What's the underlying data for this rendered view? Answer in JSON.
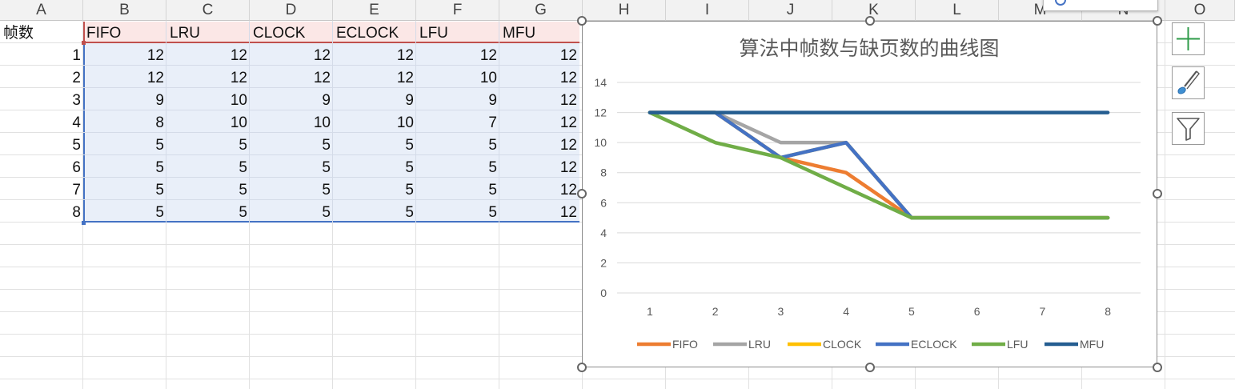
{
  "columns": [
    "A",
    "B",
    "C",
    "D",
    "E",
    "F",
    "G",
    "H",
    "I",
    "J",
    "K",
    "L",
    "M",
    "N",
    "O"
  ],
  "table": {
    "corner_label": "帧数",
    "headers": [
      "FIFO",
      "LRU",
      "CLOCK",
      "ECLOCK",
      "LFU",
      "MFU"
    ],
    "rows": [
      {
        "frames": "1",
        "values": [
          "12",
          "12",
          "12",
          "12",
          "12",
          "12"
        ]
      },
      {
        "frames": "2",
        "values": [
          "12",
          "12",
          "12",
          "12",
          "10",
          "12"
        ]
      },
      {
        "frames": "3",
        "values": [
          "9",
          "10",
          "9",
          "9",
          "9",
          "12"
        ]
      },
      {
        "frames": "4",
        "values": [
          "8",
          "10",
          "10",
          "10",
          "7",
          "12"
        ]
      },
      {
        "frames": "5",
        "values": [
          "5",
          "5",
          "5",
          "5",
          "5",
          "12"
        ]
      },
      {
        "frames": "6",
        "values": [
          "5",
          "5",
          "5",
          "5",
          "5",
          "12"
        ]
      },
      {
        "frames": "7",
        "values": [
          "5",
          "5",
          "5",
          "5",
          "5",
          "12"
        ]
      },
      {
        "frames": "8",
        "values": [
          "5",
          "5",
          "5",
          "5",
          "5",
          "12"
        ]
      }
    ]
  },
  "chart_data": {
    "type": "line",
    "title": "算法中帧数与缺页数的曲线图",
    "x": [
      1,
      2,
      3,
      4,
      5,
      6,
      7,
      8
    ],
    "xticks": [
      "1",
      "2",
      "3",
      "4",
      "5",
      "6",
      "7",
      "8"
    ],
    "yticks": [
      "0",
      "2",
      "4",
      "6",
      "8",
      "10",
      "12",
      "14"
    ],
    "ylim": [
      0,
      14
    ],
    "grid": true,
    "legend_position": "bottom",
    "series": [
      {
        "name": "FIFO",
        "color": "#ed7d31",
        "values": [
          12,
          12,
          9,
          8,
          5,
          5,
          5,
          5
        ]
      },
      {
        "name": "LRU",
        "color": "#a5a5a5",
        "values": [
          12,
          12,
          10,
          10,
          5,
          5,
          5,
          5
        ]
      },
      {
        "name": "CLOCK",
        "color": "#ffc000",
        "values": [
          12,
          12,
          9,
          10,
          5,
          5,
          5,
          5
        ]
      },
      {
        "name": "ECLOCK",
        "color": "#4472c4",
        "values": [
          12,
          12,
          9,
          10,
          5,
          5,
          5,
          5
        ]
      },
      {
        "name": "LFU",
        "color": "#70ad47",
        "values": [
          12,
          10,
          9,
          7,
          5,
          5,
          5,
          5
        ]
      },
      {
        "name": "MFU",
        "color": "#255e91",
        "values": [
          12,
          12,
          12,
          12,
          12,
          12,
          12,
          12
        ]
      }
    ]
  },
  "side_buttons": [
    {
      "name": "chart-elements-button",
      "icon": "plus-icon"
    },
    {
      "name": "chart-styles-button",
      "icon": "paintbrush-icon"
    },
    {
      "name": "chart-filters-button",
      "icon": "filter-icon"
    }
  ]
}
